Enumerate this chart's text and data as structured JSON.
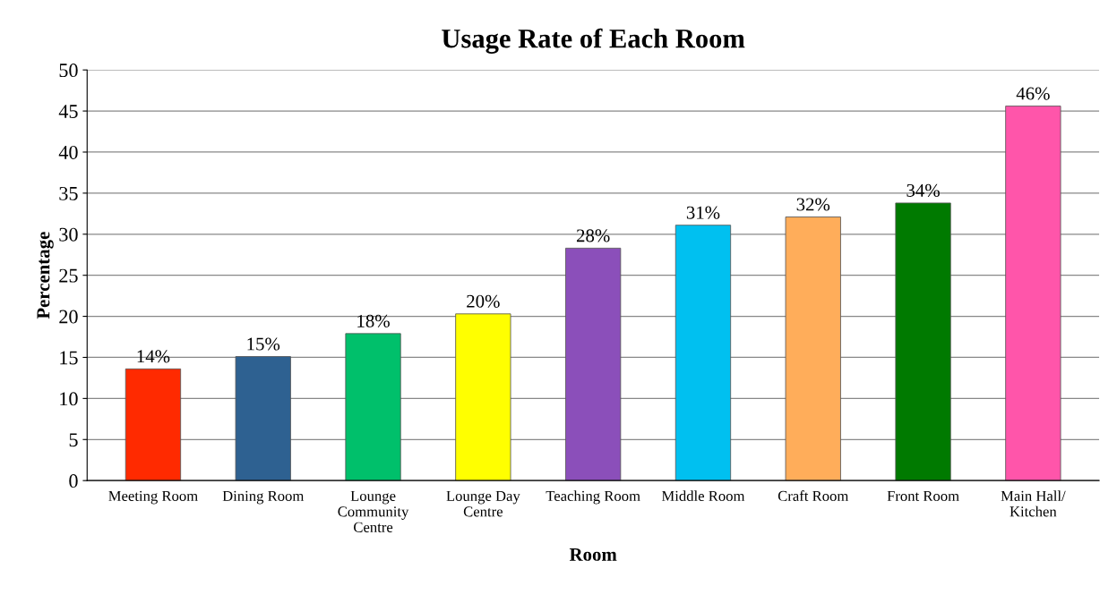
{
  "chart_data": {
    "type": "bar",
    "title": "Usage Rate of Each Room",
    "xlabel": "Room",
    "ylabel": "Percentage",
    "categories": [
      "Meeting Room",
      "Dining Room",
      "Lounge\nCommunity\nCentre",
      "Lounge Day\nCentre",
      "Teaching Room",
      "Middle Room",
      "Craft Room",
      "Front Room",
      "Main Hall/\nKitchen"
    ],
    "values": [
      13.6,
      15.1,
      17.9,
      20.3,
      28.3,
      31.1,
      32.1,
      33.8,
      45.6
    ],
    "value_labels": [
      "14%",
      "15%",
      "18%",
      "20%",
      "28%",
      "31%",
      "32%",
      "34%",
      "46%"
    ],
    "colors": [
      "#ff2a00",
      "#2e6191",
      "#00c06b",
      "#ffff00",
      "#8b4fba",
      "#00c0f0",
      "#ffad5a",
      "#007a00",
      "#ff55aa"
    ],
    "ylim": [
      0,
      50
    ],
    "yticks": [
      0,
      5,
      10,
      15,
      20,
      25,
      30,
      35,
      40,
      45,
      50
    ],
    "grid": "y",
    "legend": false
  }
}
